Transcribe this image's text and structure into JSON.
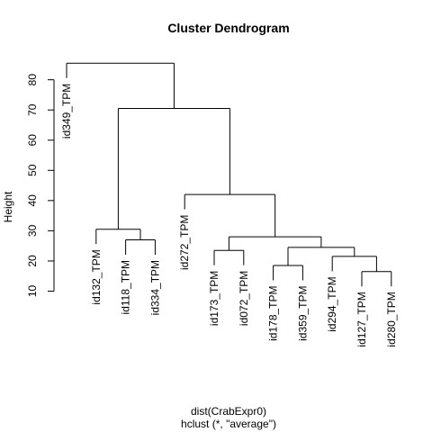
{
  "chart_data": {
    "type": "dendrogram",
    "title": "Cluster Dendrogram",
    "ylabel": "Height",
    "xlabel": "dist(CrabExpr0)",
    "sub": "hclust (*, \"average\")",
    "y_ticks": [
      10,
      20,
      30,
      40,
      50,
      60,
      70,
      80
    ],
    "ylim": [
      10,
      86
    ],
    "leaves": [
      "id349_TPM",
      "id132_TPM",
      "id118_TPM",
      "id334_TPM",
      "id272_TPM",
      "id173_TPM",
      "id072_TPM",
      "id178_TPM",
      "id359_TPM",
      "id294_TPM",
      "id127_TPM",
      "id280_TPM"
    ],
    "merges": [
      {
        "left": "id127_TPM",
        "right": "id280_TPM",
        "height": 16.5
      },
      {
        "left": "id118_TPM",
        "right": "id334_TPM",
        "height": 27
      },
      {
        "left": "id178_TPM",
        "right": "id359_TPM",
        "height": 18.5
      },
      {
        "left": "id294_TPM",
        "right": 1,
        "height": 21.5
      },
      {
        "left": "id173_TPM",
        "right": "id072_TPM",
        "height": 23.5
      },
      {
        "left": 3,
        "right": 4,
        "height": 24.5
      },
      {
        "left": 5,
        "right": 6,
        "height": 28
      },
      {
        "left": "id132_TPM",
        "right": 2,
        "height": 30.5
      },
      {
        "left": "id272_TPM",
        "right": 7,
        "height": 42
      },
      {
        "left": 8,
        "right": 9,
        "height": 70.5
      },
      {
        "left": "id349_TPM",
        "right": 10,
        "height": 85.5
      }
    ]
  }
}
